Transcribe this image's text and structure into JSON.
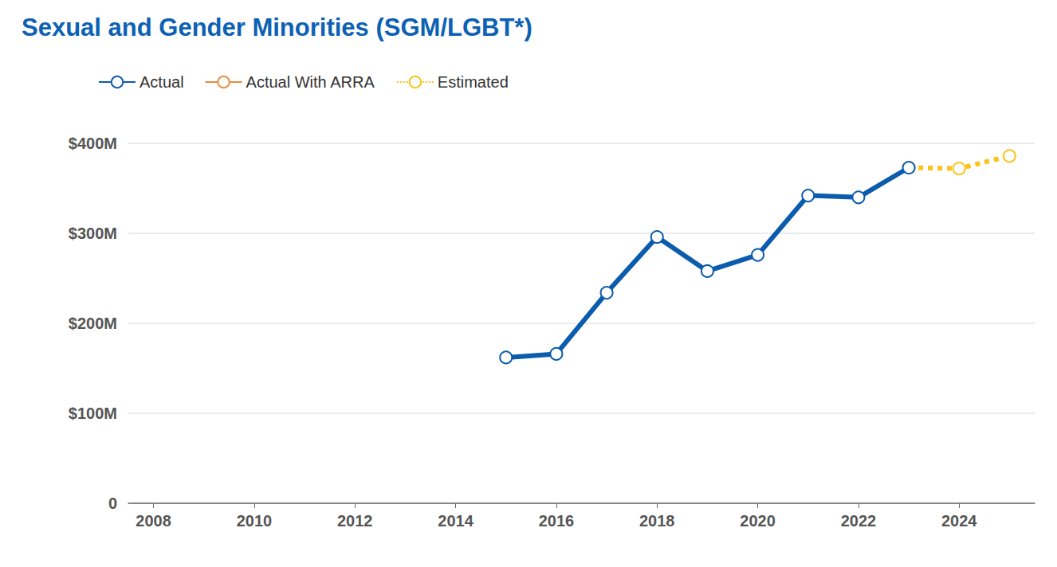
{
  "chart_data": {
    "type": "line",
    "title": "Sexual and Gender Minorities (SGM/LGBT*)",
    "x": [
      2015,
      2016,
      2017,
      2018,
      2019,
      2020,
      2021,
      2022,
      2023,
      2024,
      2025
    ],
    "series": [
      {
        "name": "Actual",
        "color": "#0b5cad",
        "marker": "circle",
        "line_style": "solid",
        "values": [
          162,
          166,
          234,
          296,
          258,
          276,
          342,
          340,
          373,
          null,
          null
        ]
      },
      {
        "name": "Actual With ARRA",
        "color": "#ec8a3e",
        "marker": "circle",
        "line_style": "solid",
        "values": [
          null,
          null,
          null,
          null,
          null,
          null,
          null,
          null,
          null,
          null,
          null
        ]
      },
      {
        "name": "Estimated",
        "color": "#fbc31b",
        "marker": "circle",
        "line_style": "dotted",
        "values": [
          null,
          null,
          null,
          null,
          null,
          null,
          null,
          null,
          373,
          372,
          386
        ]
      }
    ],
    "xlim": [
      2007.5,
      2025.5
    ],
    "xticks": [
      2008,
      2010,
      2012,
      2014,
      2016,
      2018,
      2020,
      2022,
      2024
    ],
    "ylim": [
      0,
      400
    ],
    "yticks": [
      0,
      {
        "value": 100,
        "label": "$100M"
      },
      {
        "value": 200,
        "label": "$200M"
      },
      {
        "value": 300,
        "label": "$300M"
      },
      {
        "value": 400,
        "label": "$400M"
      }
    ],
    "grid": true,
    "legend": "top-left"
  }
}
